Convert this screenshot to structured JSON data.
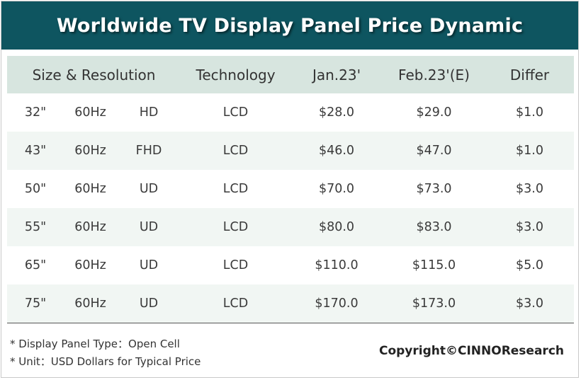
{
  "title": "Worldwide TV Display Panel Price Dynamic",
  "chart_data": {
    "type": "table",
    "title": "Worldwide TV Display Panel Price Dynamic",
    "columns": [
      "Size & Resolution",
      "Technology",
      "Jan.23'",
      "Feb.23'(E)",
      "Differ"
    ],
    "rows": [
      {
        "size": "32\"",
        "refresh": "60Hz",
        "resolution": "HD",
        "technology": "LCD",
        "jan": "$28.0",
        "feb": "$29.0",
        "differ": "$1.0"
      },
      {
        "size": "43\"",
        "refresh": "60Hz",
        "resolution": "FHD",
        "technology": "LCD",
        "jan": "$46.0",
        "feb": "$47.0",
        "differ": "$1.0"
      },
      {
        "size": "50\"",
        "refresh": "60Hz",
        "resolution": "UD",
        "technology": "LCD",
        "jan": "$70.0",
        "feb": "$73.0",
        "differ": "$3.0"
      },
      {
        "size": "55\"",
        "refresh": "60Hz",
        "resolution": "UD",
        "technology": "LCD",
        "jan": "$80.0",
        "feb": "$83.0",
        "differ": "$3.0"
      },
      {
        "size": "65\"",
        "refresh": "60Hz",
        "resolution": "UD",
        "technology": "LCD",
        "jan": "$110.0",
        "feb": "$115.0",
        "differ": "$5.0"
      },
      {
        "size": "75\"",
        "refresh": "60Hz",
        "resolution": "UD",
        "technology": "LCD",
        "jan": "$170.0",
        "feb": "$173.0",
        "differ": "$3.0"
      }
    ]
  },
  "notes": [
    "* Display Panel Type：Open Cell",
    "* Unit：USD Dollars for Typical Price"
  ],
  "copyright": "Copyright©CINNOResearch",
  "colors": {
    "title_bar": "#0e5560",
    "header_row": "#d7e5df",
    "alt_row": "#f1f6f3"
  }
}
